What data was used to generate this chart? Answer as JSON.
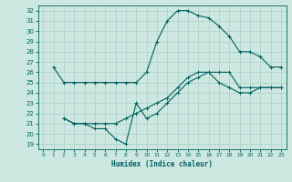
{
  "xlabel": "Humidex (Indice chaleur)",
  "bg_color": "#cce8e0",
  "grid_color": "#b0d4cc",
  "line_color": "#006060",
  "xlim": [
    -0.5,
    23.5
  ],
  "ylim": [
    18.5,
    32.5
  ],
  "xticks": [
    0,
    1,
    2,
    3,
    4,
    5,
    6,
    7,
    8,
    9,
    10,
    11,
    12,
    13,
    14,
    15,
    16,
    17,
    18,
    19,
    20,
    21,
    22,
    23
  ],
  "yticks": [
    19,
    20,
    21,
    22,
    23,
    24,
    25,
    26,
    27,
    28,
    29,
    30,
    31,
    32
  ],
  "curve1_x": [
    1,
    2,
    3,
    4,
    5,
    6,
    7,
    8,
    9,
    10,
    11,
    12,
    13,
    14,
    15,
    16,
    17,
    18,
    19,
    20,
    21,
    22,
    23
  ],
  "curve1_y": [
    26.5,
    25.0,
    25.0,
    25.0,
    25.0,
    25.0,
    25.0,
    25.0,
    25.0,
    26.0,
    29.0,
    31.0,
    32.0,
    32.0,
    31.5,
    31.3,
    30.5,
    29.5,
    28.0,
    28.0,
    27.5,
    26.5,
    26.5
  ],
  "curve2_x": [
    2,
    3,
    4,
    5,
    6,
    7,
    8,
    9,
    10,
    11,
    12,
    13,
    14,
    15,
    16,
    17,
    18,
    19,
    20,
    21,
    22,
    23
  ],
  "curve2_y": [
    21.5,
    21.0,
    21.0,
    21.0,
    21.0,
    21.0,
    21.5,
    22.0,
    22.5,
    23.0,
    23.5,
    24.5,
    25.5,
    26.0,
    26.0,
    26.0,
    26.0,
    24.5,
    24.5,
    24.5,
    24.5,
    24.5
  ],
  "curve3_x": [
    2,
    3,
    4,
    5,
    6,
    7,
    8,
    9,
    10,
    11,
    12,
    13,
    14,
    15,
    16,
    17,
    18,
    19,
    20,
    21,
    22,
    23
  ],
  "curve3_y": [
    21.5,
    21.0,
    21.0,
    20.5,
    20.5,
    19.5,
    19.0,
    23.0,
    21.5,
    22.0,
    23.0,
    24.0,
    25.0,
    25.5,
    26.0,
    25.0,
    24.5,
    24.0,
    24.0,
    24.5,
    24.5,
    24.5
  ],
  "marker": "+",
  "markersize": 3,
  "linewidth": 0.8
}
